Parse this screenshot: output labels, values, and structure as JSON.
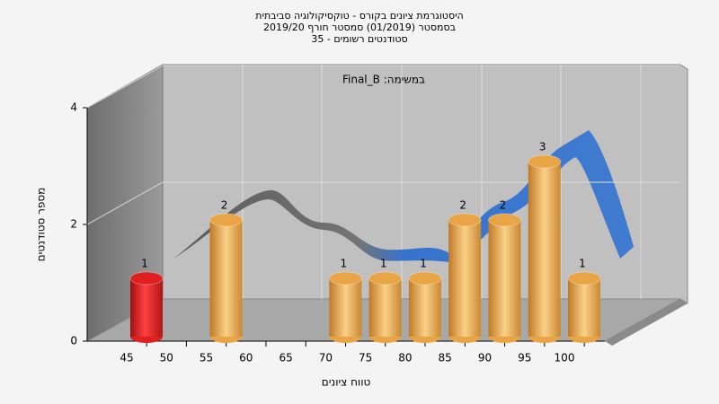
{
  "chart_data": {
    "type": "bar",
    "title": [
      "היסטוגרמת ציונים בקורס - טוקסיקולוגיה סביבתית",
      "בסמסטר (01/2019) סמסטר חורף 2019/20",
      "סטודנטים רשומים - 35"
    ],
    "subtitle": "במשימה: Final_B",
    "xlabel": "טווח ציונים",
    "ylabel": "מספר סטודנטים",
    "categories": [
      45,
      50,
      55,
      60,
      65,
      70,
      75,
      80,
      85,
      90,
      95,
      100
    ],
    "values": [
      1,
      0,
      2,
      0,
      0,
      1,
      1,
      1,
      2,
      2,
      3,
      1
    ],
    "colors": [
      "#e02020",
      "#e8a445",
      "#e8a445",
      "#e8a445",
      "#e8a445",
      "#e8a445",
      "#e8a445",
      "#e8a445",
      "#e8a445",
      "#e8a445",
      "#e8a445",
      "#e8a445"
    ],
    "ylim": [
      0,
      4
    ],
    "yticks": [
      0,
      2,
      4
    ],
    "grid": true
  }
}
